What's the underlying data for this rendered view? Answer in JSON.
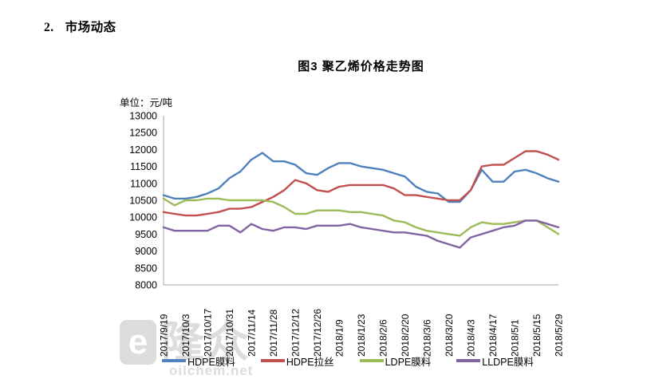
{
  "heading": {
    "number": "2.",
    "text": "市场动态"
  },
  "watermark": {
    "e": "e",
    "logo_text": "隆众",
    "site": "oilchem.net"
  },
  "chart_data": {
    "type": "line",
    "title": "图3 聚乙烯价格走势图",
    "ylabel": "单位：元/吨",
    "xlabel": "",
    "ylim": [
      8000,
      13000
    ],
    "grid": false,
    "legend_position": "bottom",
    "axis_color": "#b3b3b3",
    "text_color": "#000000",
    "y_ticks": [
      8000,
      8500,
      9000,
      9500,
      10000,
      10500,
      11000,
      11500,
      12000,
      12500,
      13000
    ],
    "x_tick_labels": [
      "2017/9/19",
      "2017/10/3",
      "2017/10/17",
      "2017/10/31",
      "2017/11/14",
      "2017/11/28",
      "2017/12/12",
      "2017/12/26",
      "2018/1/9",
      "2018/1/23",
      "2018/2/6",
      "2018/2/20",
      "2018/3/6",
      "2018/3/20",
      "2018/4/3",
      "2018/4/17",
      "2018/5/1",
      "2018/5/15",
      "2018/5/29"
    ],
    "x": [
      "2017/9/19",
      "2017/9/26",
      "2017/10/3",
      "2017/10/10",
      "2017/10/17",
      "2017/10/24",
      "2017/10/31",
      "2017/11/7",
      "2017/11/14",
      "2017/11/21",
      "2017/11/28",
      "2017/12/5",
      "2017/12/12",
      "2017/12/19",
      "2017/12/26",
      "2018/1/2",
      "2018/1/9",
      "2018/1/16",
      "2018/1/23",
      "2018/1/30",
      "2018/2/6",
      "2018/2/13",
      "2018/2/20",
      "2018/2/27",
      "2018/3/6",
      "2018/3/13",
      "2018/3/20",
      "2018/3/27",
      "2018/4/3",
      "2018/4/10",
      "2018/4/17",
      "2018/4/24",
      "2018/5/1",
      "2018/5/8",
      "2018/5/15",
      "2018/5/22",
      "2018/5/29"
    ],
    "series": [
      {
        "name": "HDPE膜料",
        "color": "#4F81BD",
        "values": [
          10650,
          10550,
          10550,
          10600,
          10700,
          10850,
          11150,
          11350,
          11700,
          11900,
          11650,
          11650,
          11550,
          11300,
          11250,
          11450,
          11600,
          11600,
          11500,
          11450,
          11400,
          11300,
          11200,
          10900,
          10750,
          10700,
          10450,
          10450,
          10800,
          11400,
          11050,
          11050,
          11350,
          11400,
          11300,
          11150,
          11050
        ]
      },
      {
        "name": "HDPE拉丝",
        "color": "#C0504D",
        "values": [
          10150,
          10100,
          10050,
          10050,
          10100,
          10150,
          10250,
          10250,
          10300,
          10450,
          10600,
          10800,
          11100,
          11000,
          10800,
          10750,
          10900,
          10950,
          10950,
          10950,
          10950,
          10850,
          10650,
          10650,
          10600,
          10550,
          10500,
          10500,
          10800,
          11500,
          11550,
          11550,
          11750,
          11950,
          11950,
          11850,
          11700
        ]
      },
      {
        "name": "LDPE膜料",
        "color": "#9BBB59",
        "values": [
          10550,
          10350,
          10500,
          10500,
          10550,
          10550,
          10500,
          10500,
          10500,
          10500,
          10450,
          10300,
          10100,
          10100,
          10200,
          10200,
          10200,
          10150,
          10150,
          10100,
          10050,
          9900,
          9850,
          9700,
          9600,
          9550,
          9500,
          9450,
          9700,
          9850,
          9800,
          9800,
          9850,
          9900,
          9900,
          9700,
          9500
        ]
      },
      {
        "name": "LLDPE膜料",
        "color": "#8064A2",
        "values": [
          9700,
          9600,
          9600,
          9600,
          9600,
          9750,
          9750,
          9550,
          9800,
          9650,
          9600,
          9700,
          9700,
          9650,
          9750,
          9750,
          9750,
          9800,
          9700,
          9650,
          9600,
          9550,
          9550,
          9500,
          9450,
          9300,
          9200,
          9100,
          9400,
          9500,
          9600,
          9700,
          9750,
          9900,
          9900,
          9800,
          9700
        ]
      }
    ]
  }
}
